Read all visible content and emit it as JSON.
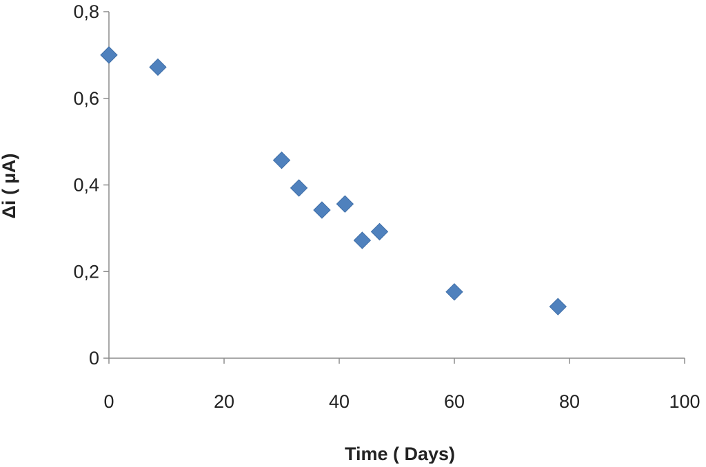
{
  "chart_data": {
    "type": "scatter",
    "title": "",
    "xlabel": "Time ( Days)",
    "ylabel": "Δi ( µA)",
    "xlim": [
      0,
      100
    ],
    "ylim": [
      0,
      0.8
    ],
    "x_ticks": [
      0,
      20,
      40,
      60,
      80,
      100
    ],
    "x_tick_labels": [
      "0",
      "20",
      "40",
      "60",
      "80",
      "100"
    ],
    "y_ticks": [
      0,
      0.2,
      0.4,
      0.6,
      0.8
    ],
    "y_tick_labels": [
      "0",
      "0,2",
      "0,4",
      "0,6",
      "0,8"
    ],
    "grid": false,
    "legend": "none",
    "marker": "diamond",
    "marker_color": "#4f81bd",
    "series": [
      {
        "x": [
          0,
          8.5,
          30,
          33,
          37,
          41,
          44,
          47,
          60,
          78
        ],
        "y": [
          0.7,
          0.672,
          0.457,
          0.393,
          0.342,
          0.356,
          0.272,
          0.292,
          0.153,
          0.119
        ]
      }
    ]
  }
}
